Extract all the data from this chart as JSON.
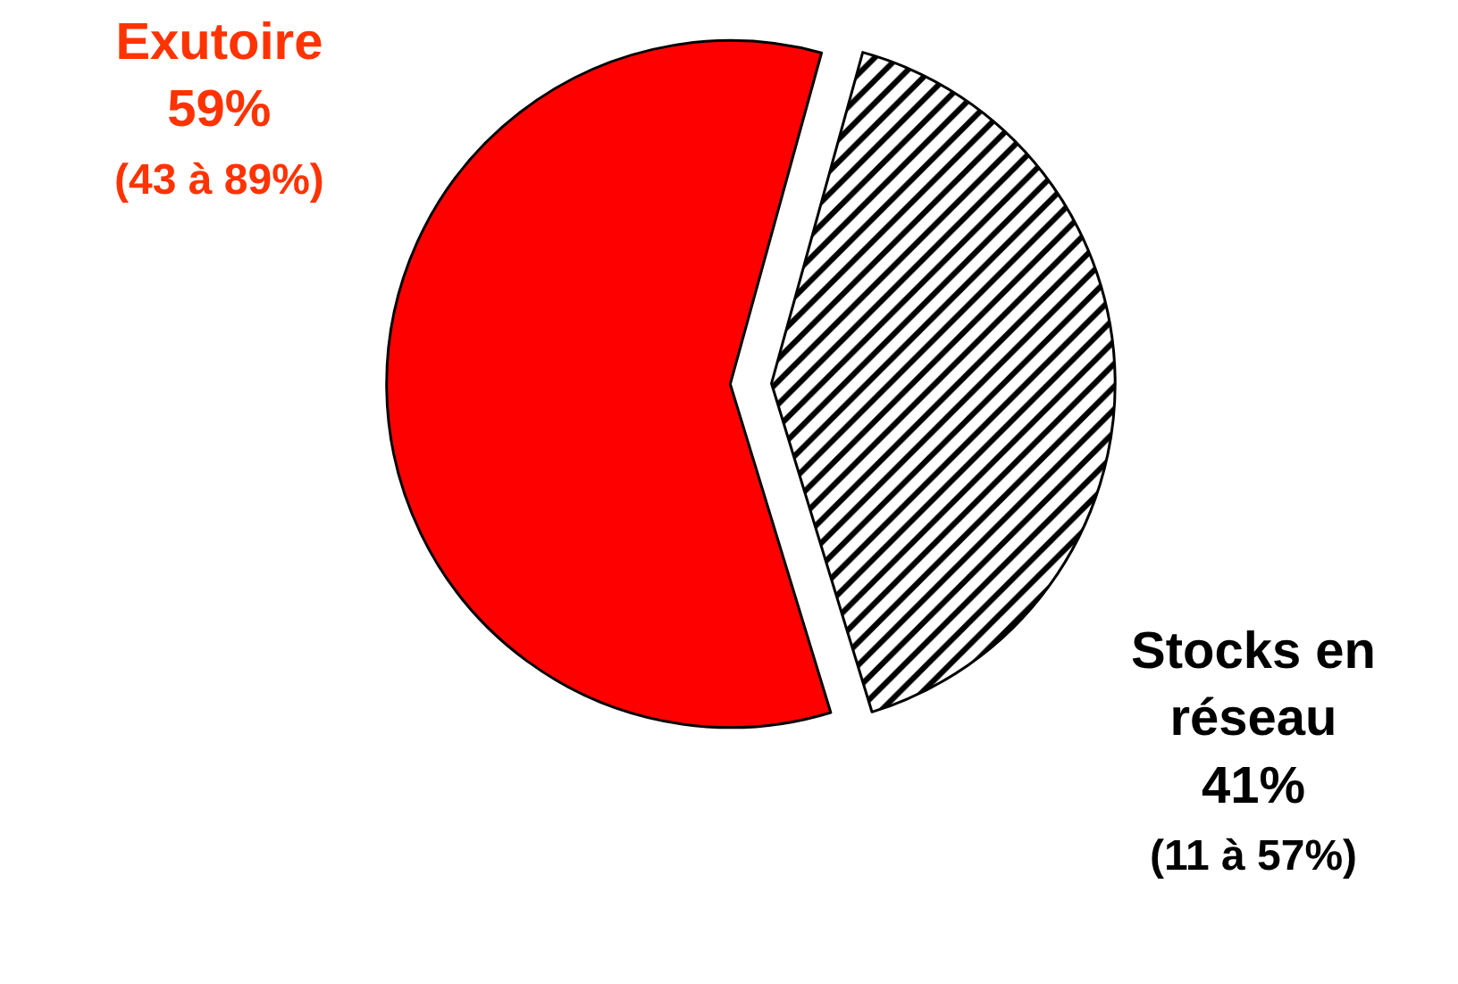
{
  "chart_data": {
    "type": "pie",
    "categories": [
      "Exutoire",
      "Stocks en réseau"
    ],
    "values": [
      59,
      41
    ],
    "colors": [
      "#ff0000",
      "#000000"
    ],
    "value_labels": [
      "59%",
      "41%"
    ],
    "annotations": [
      "(43 à 89%)",
      "(11 à 57%)"
    ]
  }
}
